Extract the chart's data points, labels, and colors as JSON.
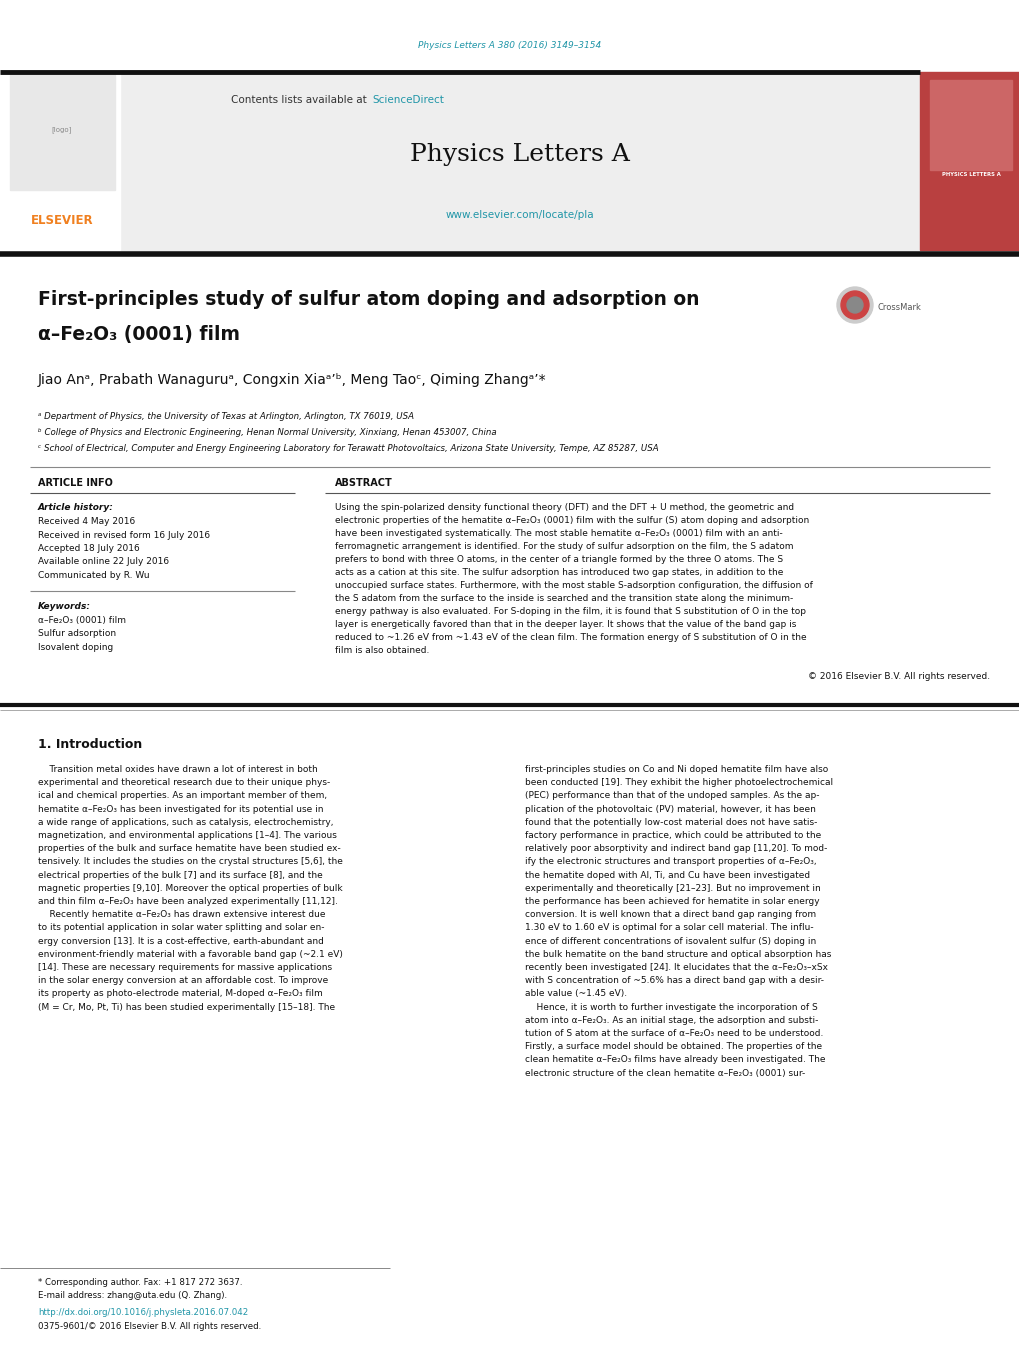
{
  "page_width": 10.2,
  "page_height": 13.51,
  "bg_color": "#ffffff",
  "journal_ref_color": "#2196a8",
  "journal_ref": "Physics Letters A 380 (2016) 3149–3154",
  "header_bg": "#eeeeee",
  "journal_title": "Physics Letters A",
  "contents_text": "Contents lists available at ",
  "sciencedirect_text": "ScienceDirect",
  "sciencedirect_color": "#2196a8",
  "elsevier_url": "www.elsevier.com/locate/pla",
  "elsevier_url_color": "#2196a8",
  "elsevier_color": "#f08020",
  "elsevier_text": "ELSEVIER",
  "sidebar_color": "#b94040",
  "sidebar_text": "PHYSICS LETTERS A",
  "paper_title_line1": "First-principles study of sulfur atom doping and adsorption on",
  "paper_title_line2": "α–Fe₂O₃ (0001) film",
  "authors": "Jiao Anᵃ, Prabath Wanaguruᵃ, Congxin Xiaᵃ’ᵇ, Meng Taoᶜ, Qiming Zhangᵃ’*",
  "affil_a": "ᵃ Department of Physics, the University of Texas at Arlington, Arlington, TX 76019, USA",
  "affil_b": "ᵇ College of Physics and Electronic Engineering, Henan Normal University, Xinxiang, Henan 453007, China",
  "affil_c": "ᶜ School of Electrical, Computer and Energy Engineering Laboratory for Terawatt Photovoltaics, Arizona State University, Tempe, AZ 85287, USA",
  "article_info_label": "ARTICLE INFO",
  "abstract_label": "ABSTRACT",
  "article_history_label": "Article history:",
  "received1": "Received 4 May 2016",
  "received2": "Received in revised form 16 July 2016",
  "accepted": "Accepted 18 July 2016",
  "available": "Available online 22 July 2016",
  "communicated": "Communicated by R. Wu",
  "keywords_label": "Keywords:",
  "keyword1": "α–Fe₂O₃ (0001) film",
  "keyword2": "Sulfur adsorption",
  "keyword3": "Isovalent doping",
  "copyright": "© 2016 Elsevier B.V. All rights reserved.",
  "intro_heading": "1. Introduction",
  "footnote_star": "* Corresponding author. Fax: +1 817 272 3637.",
  "footnote_email": "E-mail address: zhang@uta.edu (Q. Zhang).",
  "footnote_doi": "http://dx.doi.org/10.1016/j.physleta.2016.07.042",
  "footnote_issn": "0375-9601/© 2016 Elsevier B.V. All rights reserved."
}
